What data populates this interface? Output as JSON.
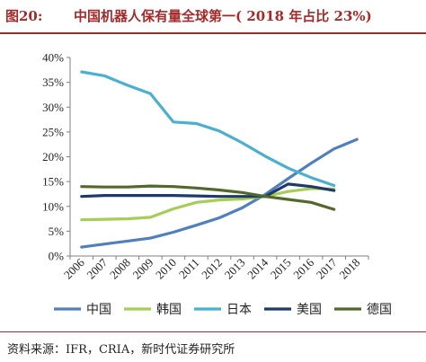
{
  "header": {
    "figure_label": "图20:",
    "title": "中国机器人保有量全球第一( 2018 年占比 23%)"
  },
  "source": {
    "text": "资料来源：IFR，CRIA，新时代证券研究所"
  },
  "chart_data": {
    "type": "line",
    "x": [
      "2006",
      "2007",
      "2008",
      "2009",
      "2010",
      "2011",
      "2012",
      "2013",
      "2014",
      "2015",
      "2016",
      "2017",
      "2018"
    ],
    "ylim": [
      0,
      40
    ],
    "y_ticks": [
      "0%",
      "5%",
      "10%",
      "15%",
      "20%",
      "25%",
      "30%",
      "35%",
      "40%"
    ],
    "y_tick_values": [
      0,
      5,
      10,
      15,
      20,
      25,
      30,
      35,
      40
    ],
    "grid": false,
    "legend_position": "bottom",
    "series": [
      {
        "name": "中国",
        "color": "#4f7fbf",
        "values": [
          1.8,
          2.4,
          3.0,
          3.6,
          4.8,
          6.2,
          7.7,
          9.7,
          12.4,
          15.6,
          18.7,
          21.6,
          23.5
        ]
      },
      {
        "name": "韩国",
        "color": "#a6cd58",
        "values": [
          7.3,
          7.4,
          7.5,
          7.8,
          9.5,
          10.8,
          11.3,
          11.5,
          12.0,
          13.0,
          13.6,
          13.5,
          null
        ]
      },
      {
        "name": "日本",
        "color": "#4bafd0",
        "values": [
          37.1,
          36.3,
          34.4,
          32.7,
          27.0,
          26.7,
          25.2,
          22.8,
          20.1,
          17.7,
          15.8,
          14.2,
          null
        ]
      },
      {
        "name": "美国",
        "color": "#1f3a68",
        "values": [
          12.0,
          12.2,
          12.2,
          12.2,
          12.2,
          12.1,
          12.0,
          12.0,
          12.0,
          14.5,
          14.0,
          13.2,
          null
        ]
      },
      {
        "name": "德国",
        "color": "#53682b",
        "values": [
          14.0,
          13.9,
          13.9,
          14.1,
          14.0,
          13.7,
          13.3,
          12.8,
          12.0,
          11.4,
          10.8,
          9.4,
          null
        ]
      }
    ]
  }
}
